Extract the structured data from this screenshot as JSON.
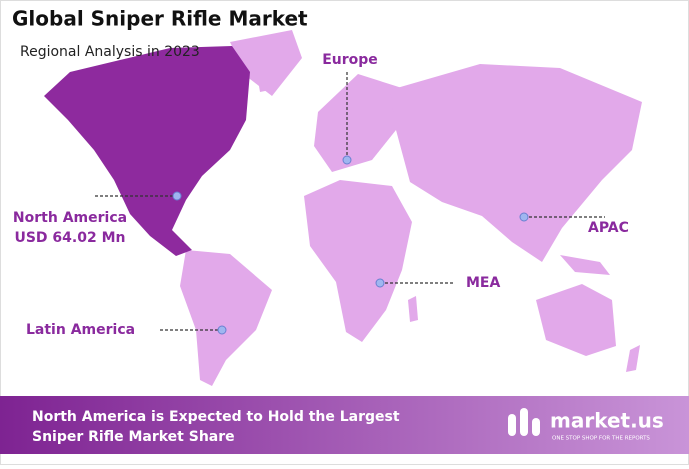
{
  "header": {
    "title": "Global Sniper Rifle Market",
    "subtitle": "Regional Analysis in 2023"
  },
  "regions": {
    "north_america": {
      "name": "North America",
      "value": "USD 64.02 Mn"
    },
    "europe": {
      "name": "Europe"
    },
    "apac": {
      "name": "APAC"
    },
    "mea": {
      "name": "MEA"
    },
    "latin_america": {
      "name": "Latin America"
    }
  },
  "footer": {
    "line1": "North America is Expected to Hold the Largest",
    "line2": "Sniper Rifle Market Share",
    "brand": "market.us",
    "tagline": "ONE STOP SHOP FOR THE REPORTS"
  }
}
